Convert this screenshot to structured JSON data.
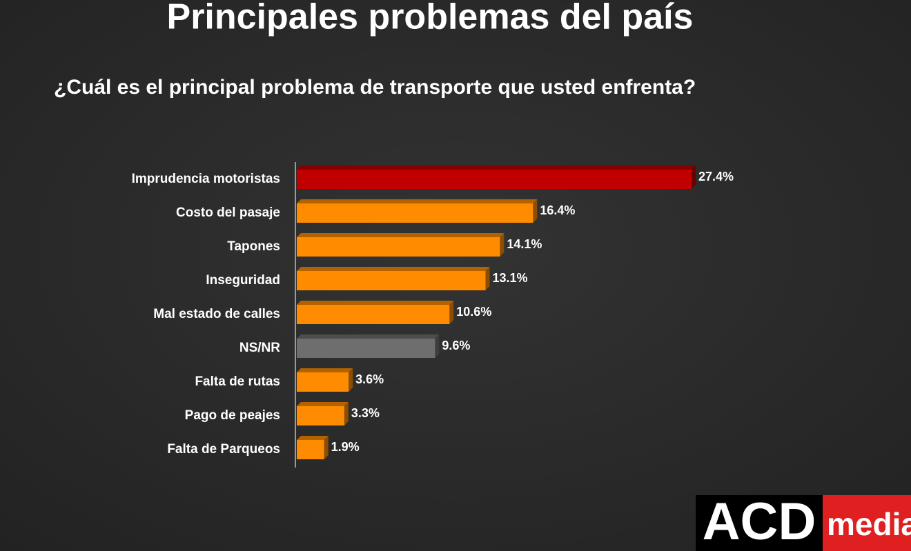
{
  "chart_data": {
    "type": "bar",
    "title": "Principales problemas del país",
    "subtitle": "¿Cuál es el principal problema de transporte que usted enfrenta?",
    "orientation": "horizontal",
    "categories": [
      "Imprudencia motoristas",
      "Costo del pasaje",
      "Tapones",
      "Inseguridad",
      "Mal estado de calles",
      "NS/NR",
      "Falta de rutas",
      "Pago de peajes",
      "Falta de Parqueos"
    ],
    "values": [
      27.4,
      16.4,
      14.1,
      13.1,
      10.6,
      9.6,
      3.6,
      3.3,
      1.9
    ],
    "value_labels": [
      "27.4%",
      "16.4%",
      "14.1%",
      "13.1%",
      "10.6%",
      "9.6%",
      "3.6%",
      "3.3%",
      "1.9%"
    ],
    "colors": [
      "#c00000",
      "#ff8c00",
      "#ff8c00",
      "#ff8c00",
      "#ff8c00",
      "#6e6e6e",
      "#ff8c00",
      "#ff8c00",
      "#ff8c00"
    ]
  },
  "logo": {
    "left": "ACD",
    "right": "media"
  }
}
